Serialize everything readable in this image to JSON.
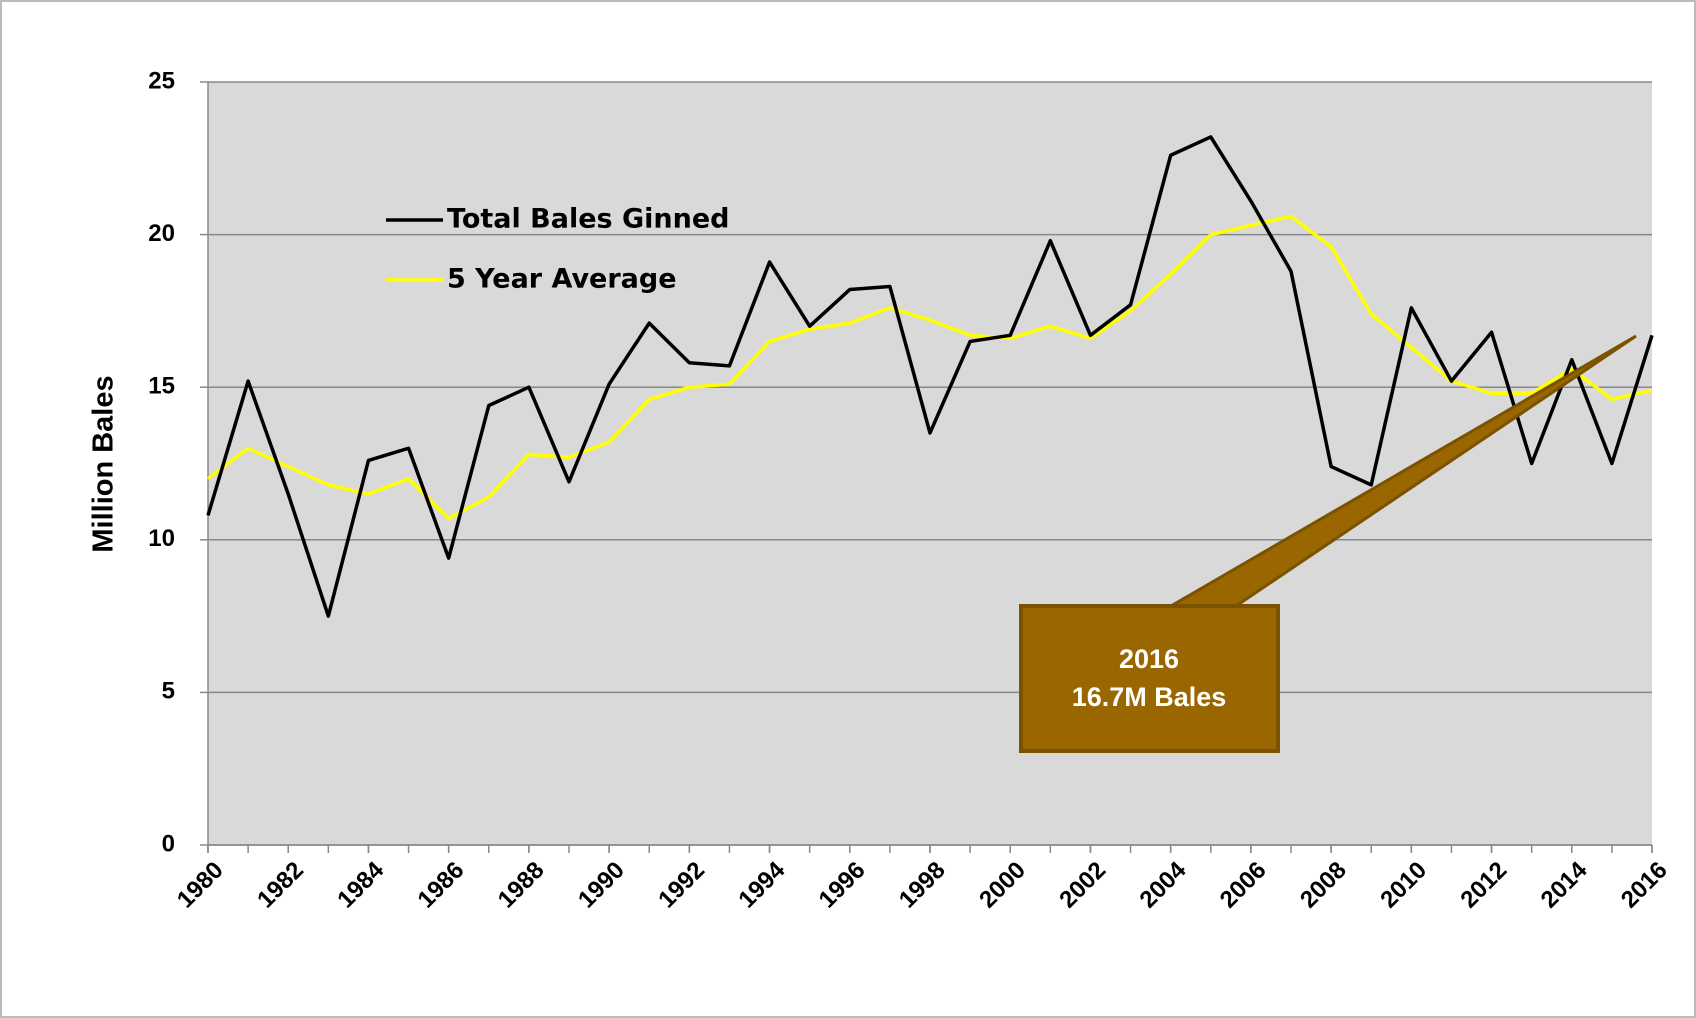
{
  "chart_data": {
    "type": "line",
    "y_label": "Million Bales",
    "x": [
      1980,
      1981,
      1982,
      1983,
      1984,
      1985,
      1986,
      1987,
      1988,
      1989,
      1990,
      1991,
      1992,
      1993,
      1994,
      1995,
      1996,
      1997,
      1998,
      1999,
      2000,
      2001,
      2002,
      2003,
      2004,
      2005,
      2006,
      2007,
      2008,
      2009,
      2010,
      2011,
      2012,
      2013,
      2014,
      2015,
      2016
    ],
    "series": [
      {
        "name": "Total Bales Ginned",
        "color": "#000000",
        "values": [
          10.8,
          15.2,
          11.5,
          7.5,
          12.6,
          13.0,
          9.4,
          14.4,
          15.0,
          11.9,
          15.1,
          17.1,
          15.8,
          15.7,
          19.1,
          17.0,
          18.2,
          18.3,
          13.5,
          16.5,
          16.7,
          19.8,
          16.7,
          17.7,
          22.6,
          23.2,
          21.1,
          18.8,
          12.4,
          11.8,
          17.6,
          15.2,
          16.8,
          12.5,
          15.9,
          12.5,
          16.7
        ]
      },
      {
        "name": "5 Year Average",
        "color": "#ffff00",
        "values": [
          12.0,
          13.0,
          12.4,
          11.8,
          11.5,
          12.0,
          10.7,
          11.4,
          12.8,
          12.7,
          13.2,
          14.6,
          15.0,
          15.1,
          16.5,
          16.9,
          17.1,
          17.6,
          17.2,
          16.7,
          16.6,
          17.0,
          16.6,
          17.5,
          18.7,
          20.0,
          20.3,
          20.6,
          19.6,
          17.4,
          16.3,
          15.2,
          14.8,
          14.8,
          15.6,
          14.6,
          14.9
        ]
      }
    ],
    "xlim": [
      1980,
      2016
    ],
    "xticks": [
      1980,
      1982,
      1984,
      1986,
      1988,
      1990,
      1992,
      1994,
      1996,
      1998,
      2000,
      2002,
      2004,
      2006,
      2008,
      2010,
      2012,
      2014,
      2016
    ],
    "ylim": [
      0,
      25
    ],
    "yticks": [
      0,
      5,
      10,
      15,
      20,
      25
    ],
    "grid": true,
    "annotation": [
      "2016",
      "16.7M Bales"
    ]
  }
}
